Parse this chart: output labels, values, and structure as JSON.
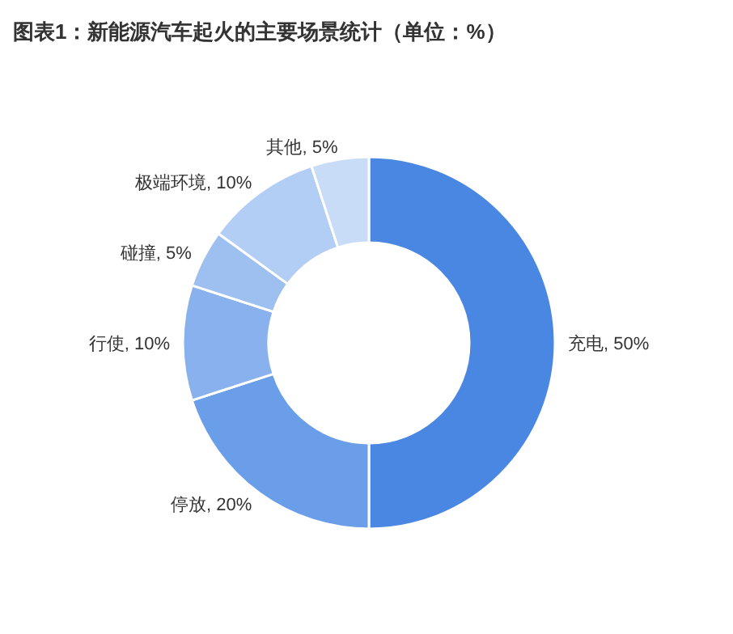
{
  "chart_data": {
    "type": "donut",
    "title": "图表1：新能源汽车起火的主要场景统计（单位：%）",
    "categories": [
      "充电",
      "停放",
      "行使",
      "碰撞",
      "极端环境",
      "其他"
    ],
    "values": [
      50,
      20,
      10,
      5,
      10,
      5
    ],
    "colors": [
      "#4a87e2",
      "#6b9ee8",
      "#88b1ed",
      "#9ec0f1",
      "#b3cef4",
      "#c8dcf8"
    ],
    "value_labels": [
      ", 50%",
      ", 20%",
      ", 10%",
      ", 5%",
      ", 10%",
      ", 5%"
    ]
  }
}
